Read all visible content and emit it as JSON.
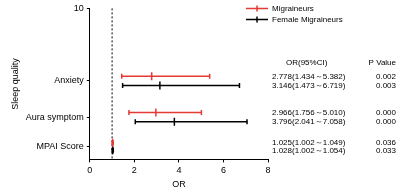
{
  "chart_data": {
    "type": "scatter",
    "x_label": "OR",
    "y_label": "Sleep quality",
    "xlim": [
      0,
      8
    ],
    "xticks": [
      0,
      2,
      4,
      6,
      8
    ],
    "ylim": [
      0,
      10
    ],
    "yticks": [
      {
        "value": 0.85,
        "label": "MPAI Score"
      },
      {
        "value": 2.8,
        "label": "Aura symptom"
      },
      {
        "value": 5.2,
        "label": "Anxiety"
      },
      10
    ],
    "reference_x": 1,
    "column_titles": [
      "OR(95%CI)",
      "P Value"
    ],
    "legend": "upper right",
    "grid": false,
    "series": [
      {
        "name": "Migraineurs",
        "color": "#e53935",
        "values": [
          2.778,
          2.966,
          1.025
        ],
        "lower": [
          1.434,
          1.756,
          1.002
        ],
        "upper": [
          5.382,
          5.01,
          1.049
        ],
        "y": [
          5.5,
          3.1,
          1.1
        ],
        "value_labels": [
          "2.778(1.434～5.382)",
          "2.966(1.756～5.010)",
          "1.025(1.002～1.049)"
        ],
        "p_labels": [
          "0.002",
          "0.000",
          "0.036"
        ]
      },
      {
        "name": "Female Migraineurs",
        "color": "#000000",
        "values": [
          3.146,
          3.796,
          1.028
        ],
        "lower": [
          1.473,
          2.041,
          1.002
        ],
        "upper": [
          6.719,
          7.058,
          1.054
        ],
        "y": [
          4.9,
          2.5,
          0.6
        ],
        "value_labels": [
          "3.146(1.473～6.719)",
          "3.796(2.041～7.058)",
          "1.028(1.002～1.054)"
        ],
        "p_labels": [
          "0.003",
          "0.000",
          "0.033"
        ]
      }
    ]
  }
}
